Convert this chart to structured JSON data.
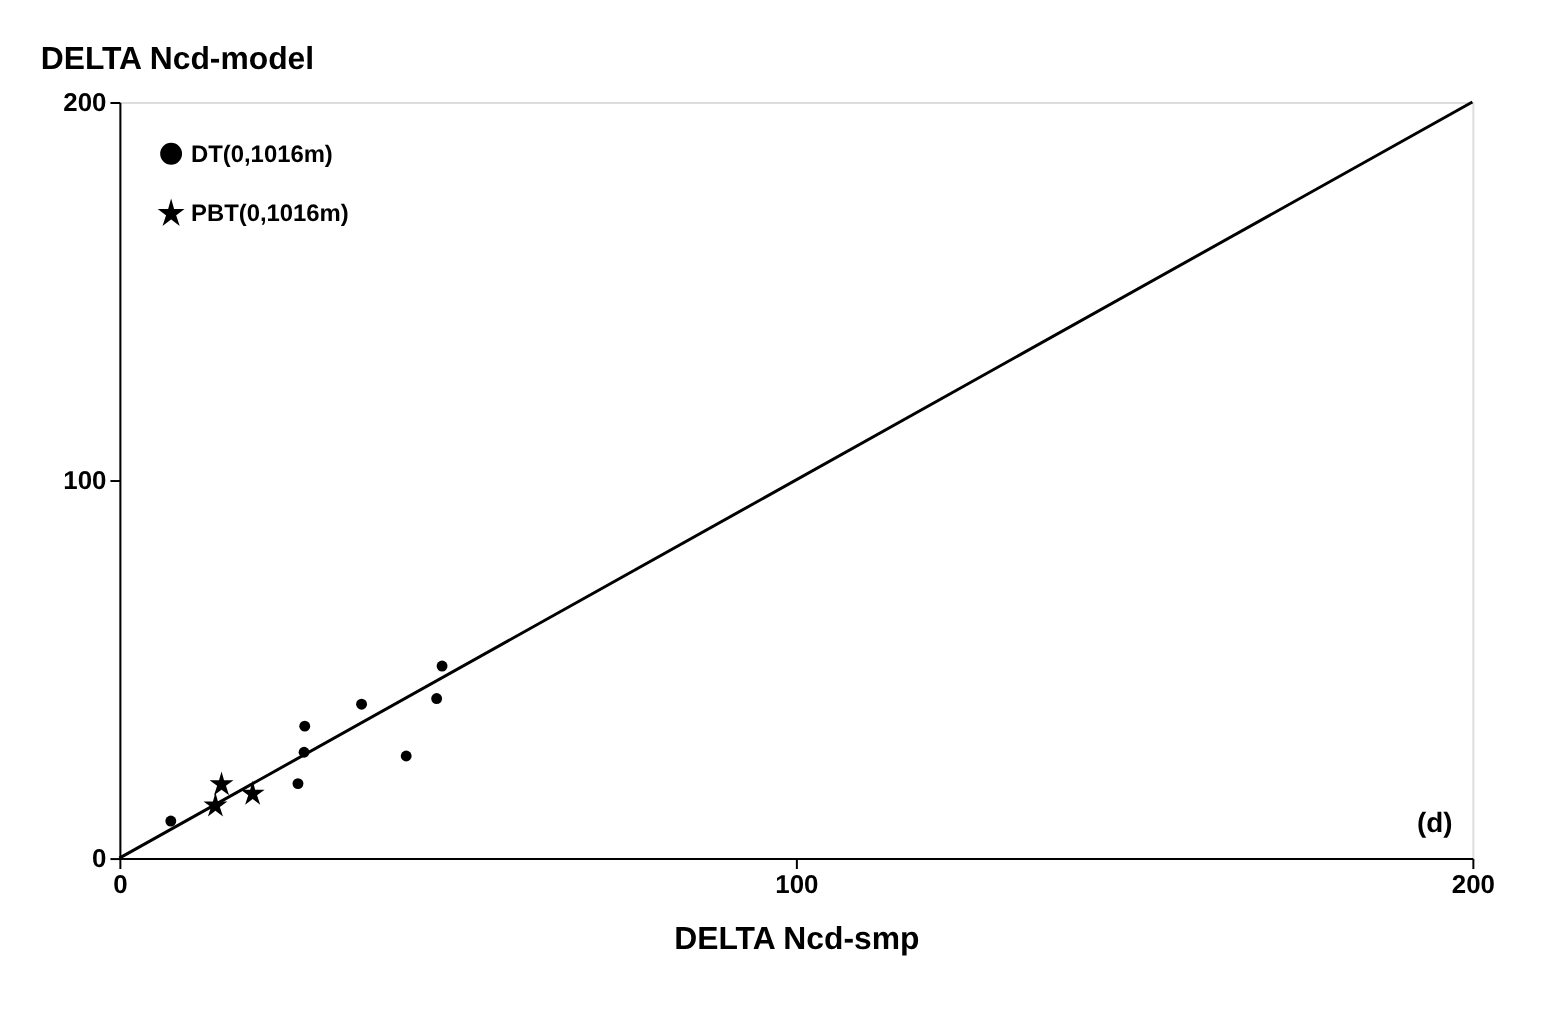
{
  "chart_data": {
    "type": "scatter",
    "ylabel": "DELTA Ncd-model",
    "xlabel": "DELTA Ncd-smp",
    "xlim": [
      0,
      200
    ],
    "ylim": [
      0,
      200
    ],
    "xticks": [
      0,
      100,
      200
    ],
    "yticks": [
      0,
      100,
      200
    ],
    "grid": false,
    "legend": "top left",
    "annotations": [
      "(d)"
    ],
    "series": [
      {
        "name": "DT(0,1016m)",
        "color": "#000000",
        "marker": "circle",
        "x": [
          7.6,
          27.4,
          27.3,
          26.4,
          35.8,
          42.4,
          46.9,
          47.7
        ],
        "values": [
          9.8,
          34.9,
          28,
          19.7,
          40.7,
          27,
          42.2,
          50.8
        ]
      },
      {
        "name": "PBT(0,1016m)",
        "color": "#000000",
        "marker": "star",
        "x": [
          15.1,
          14.2,
          19.7
        ],
        "values": [
          19.6,
          14,
          17.1
        ]
      },
      {
        "type": "line",
        "color": "#000000",
        "marker": "none",
        "line_style": "solid",
        "x": [
          0,
          200
        ],
        "values": [
          0,
          200
        ]
      }
    ]
  }
}
